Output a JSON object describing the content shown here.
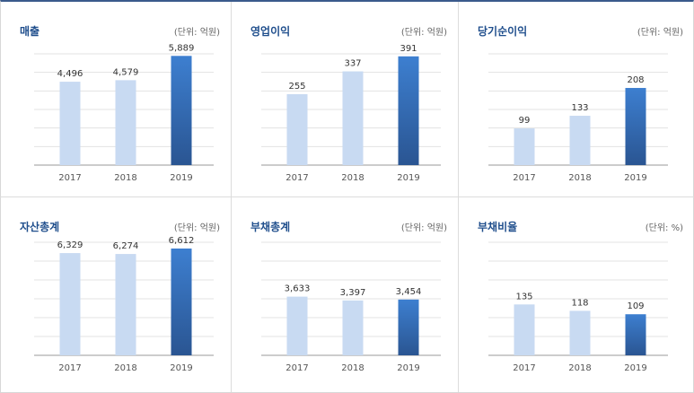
{
  "colors": {
    "bar_light": "#c8daf2",
    "bar_dark_top": "#3d7fd0",
    "bar_dark_bottom": "#2a5592",
    "title": "#1f4e8c",
    "grid": "#e3e3e3",
    "axis": "#999999"
  },
  "chart_data": [
    {
      "type": "bar",
      "title": "매출",
      "unit": "(단위: 억원)",
      "categories": [
        "2017",
        "2018",
        "2019"
      ],
      "values": [
        4496,
        4579,
        5889
      ],
      "value_labels": [
        "4,496",
        "4,579",
        "5,889"
      ],
      "ylim": [
        0,
        6000
      ],
      "grid": true
    },
    {
      "type": "bar",
      "title": "영업이익",
      "unit": "(단위: 억원)",
      "categories": [
        "2017",
        "2018",
        "2019"
      ],
      "values": [
        255,
        337,
        391
      ],
      "value_labels": [
        "255",
        "337",
        "391"
      ],
      "ylim": [
        0,
        400
      ],
      "grid": true
    },
    {
      "type": "bar",
      "title": "당기순이익",
      "unit": "(단위: 억원)",
      "categories": [
        "2017",
        "2018",
        "2019"
      ],
      "values": [
        99,
        133,
        208
      ],
      "value_labels": [
        "99",
        "133",
        "208"
      ],
      "ylim": [
        0,
        300
      ],
      "grid": true
    },
    {
      "type": "bar",
      "title": "자산총계",
      "unit": "(단위: 억원)",
      "categories": [
        "2017",
        "2018",
        "2019"
      ],
      "values": [
        6329,
        6274,
        6612
      ],
      "value_labels": [
        "6,329",
        "6,274",
        "6,612"
      ],
      "ylim": [
        0,
        7000
      ],
      "grid": true
    },
    {
      "type": "bar",
      "title": "부채총계",
      "unit": "(단위: 억원)",
      "categories": [
        "2017",
        "2018",
        "2019"
      ],
      "values": [
        3633,
        3397,
        3454
      ],
      "value_labels": [
        "3,633",
        "3,397",
        "3,454"
      ],
      "ylim": [
        0,
        7000
      ],
      "grid": true
    },
    {
      "type": "bar",
      "title": "부채비율",
      "unit": "(단위: %)",
      "categories": [
        "2017",
        "2018",
        "2019"
      ],
      "values": [
        135,
        118,
        109
      ],
      "value_labels": [
        "135",
        "118",
        "109"
      ],
      "ylim": [
        0,
        300
      ],
      "grid": true
    }
  ]
}
